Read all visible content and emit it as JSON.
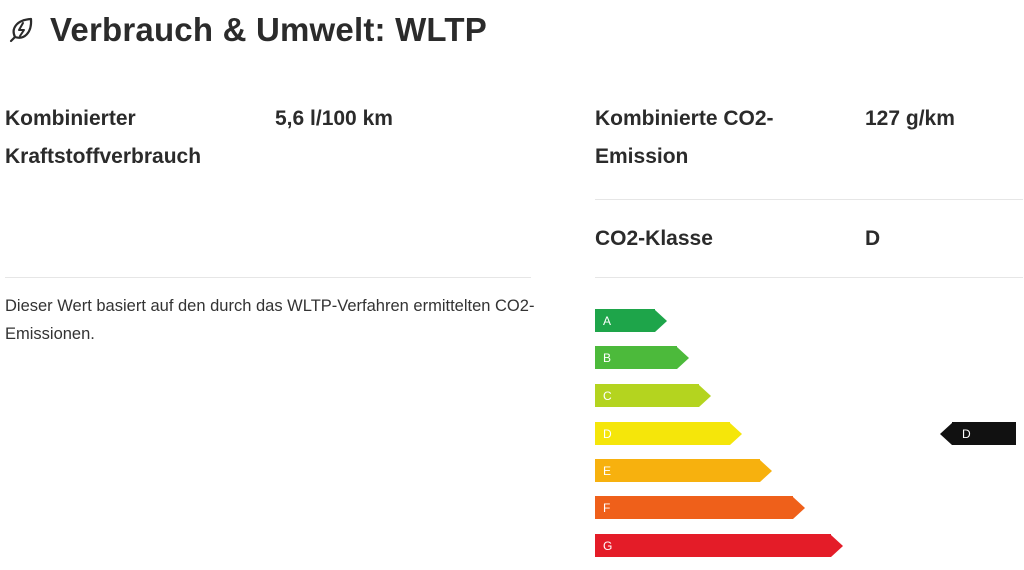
{
  "header": {
    "icon": "leaf-lightning-icon",
    "title": "Verbrauch & Umwelt: WLTP"
  },
  "consumption": {
    "label": "Kombinierter Kraftstoffverbrauch",
    "value": "5,6 l/100 km",
    "note": "Dieser Wert basiert auf den durch das WLTP-Verfahren ermittelten CO2-Emissionen."
  },
  "emission": {
    "label": "Kombinierte CO2-Emission",
    "value": "127 g/km"
  },
  "co2_class": {
    "label": "CO2-Klasse",
    "value": "D"
  },
  "scale": {
    "classes": [
      {
        "letter": "A",
        "color": "#1ea54a"
      },
      {
        "letter": "B",
        "color": "#4cba3b"
      },
      {
        "letter": "C",
        "color": "#b4d41f"
      },
      {
        "letter": "D",
        "color": "#f5e60a"
      },
      {
        "letter": "E",
        "color": "#f7b10e"
      },
      {
        "letter": "F",
        "color": "#ef601a"
      },
      {
        "letter": "G",
        "color": "#e41c28"
      }
    ],
    "marker": {
      "letter": "D",
      "color": "#111111"
    }
  }
}
